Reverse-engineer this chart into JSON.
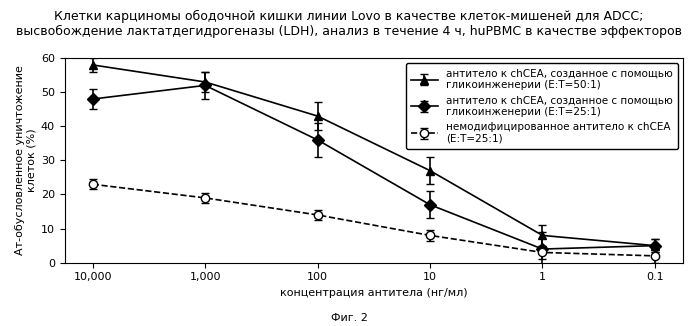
{
  "title_line1": "Клетки карциномы ободочной кишки линии Lovo в качестве клеток-мишеней для ADCC;",
  "title_line2": "высвобождение лактатдегидрогеназы (LDH), анализ в течение 4 ч, huPBMC в качестве эффекторов",
  "xlabel": "концентрация антитела (нг/мл)",
  "ylabel": "Ат-обусловленное уничтожение\nклеток (%)",
  "caption": "Фиг. 2",
  "x_labels": [
    "10,000",
    "1,000",
    "100",
    "10",
    "1",
    "0.1"
  ],
  "x_values": [
    10000,
    1000,
    100,
    10,
    1,
    0.1
  ],
  "series1": {
    "label": "антитело к chCEA, созданное с помощью\nгликоинженерии (E:T=50:1)",
    "y": [
      58,
      53,
      43,
      27,
      8,
      5
    ],
    "yerr": [
      2,
      3,
      4,
      4,
      3,
      2
    ],
    "marker": "^",
    "linestyle": "-",
    "color": "#000000",
    "fillstyle": "full"
  },
  "series2": {
    "label": "антитело к chCEA, созданное с помощью\nгликоинженерии (E:T=25:1)",
    "y": [
      48,
      52,
      36,
      17,
      4,
      5
    ],
    "yerr": [
      3,
      4,
      5,
      4,
      5,
      2
    ],
    "marker": "D",
    "linestyle": "-",
    "color": "#000000",
    "fillstyle": "full"
  },
  "series3": {
    "label": "немодифицированное антитело к chCEA\n(E:T=25:1)",
    "y": [
      23,
      19,
      14,
      8,
      3,
      2
    ],
    "yerr": [
      1.5,
      1.5,
      1.5,
      1.5,
      2,
      2
    ],
    "marker": "o",
    "linestyle": "--",
    "color": "#000000",
    "fillstyle": "none"
  },
  "ylim": [
    0,
    60
  ],
  "yticks": [
    0,
    10,
    20,
    30,
    40,
    50,
    60
  ],
  "background_color": "#ffffff",
  "title_fontsize": 9,
  "axis_fontsize": 8,
  "legend_fontsize": 7.5
}
